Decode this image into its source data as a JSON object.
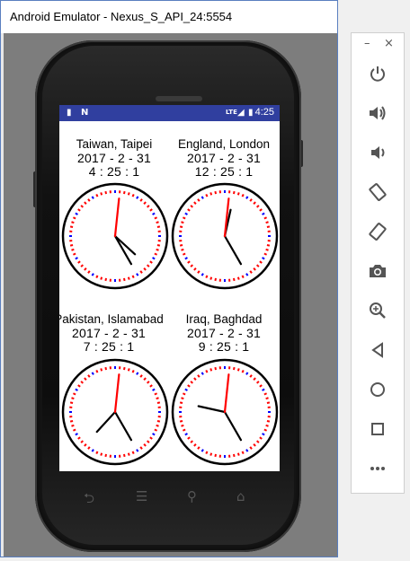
{
  "window": {
    "title": "Android Emulator - Nexus_S_API_24:5554"
  },
  "status_bar": {
    "time": "4:25",
    "network": "LTE"
  },
  "clocks": [
    {
      "city": "Taiwan, Taipei",
      "date": "2017 - 2 - 31",
      "time": "4 : 25 : 1",
      "hour": 4,
      "minute": 25,
      "second": 1
    },
    {
      "city": "England, London",
      "date": "2017 - 2 - 31",
      "time": "12 : 25 : 1",
      "hour": 12,
      "minute": 25,
      "second": 1
    },
    {
      "city": "Pakistan, Islamabad",
      "date": "2017 - 2 - 31",
      "time": "7 : 25 : 1",
      "hour": 7,
      "minute": 25,
      "second": 1
    },
    {
      "city": "Iraq, Baghdad",
      "date": "2017 - 2 - 31",
      "time": "9 : 25 : 1",
      "hour": 9,
      "minute": 25,
      "second": 1
    }
  ],
  "colors": {
    "status_bar": "#303f9f",
    "second_hand": "#ff0000",
    "tick_red": "#ff0000",
    "tick_blue": "#0000ff"
  },
  "toolbar": {
    "minimize": "–",
    "close": "×",
    "items": [
      "power-icon",
      "volume-up-icon",
      "volume-down-icon",
      "rotate-left-icon",
      "rotate-right-icon",
      "camera-icon",
      "zoom-icon",
      "back-icon",
      "home-icon",
      "overview-icon",
      "more-icon"
    ]
  }
}
